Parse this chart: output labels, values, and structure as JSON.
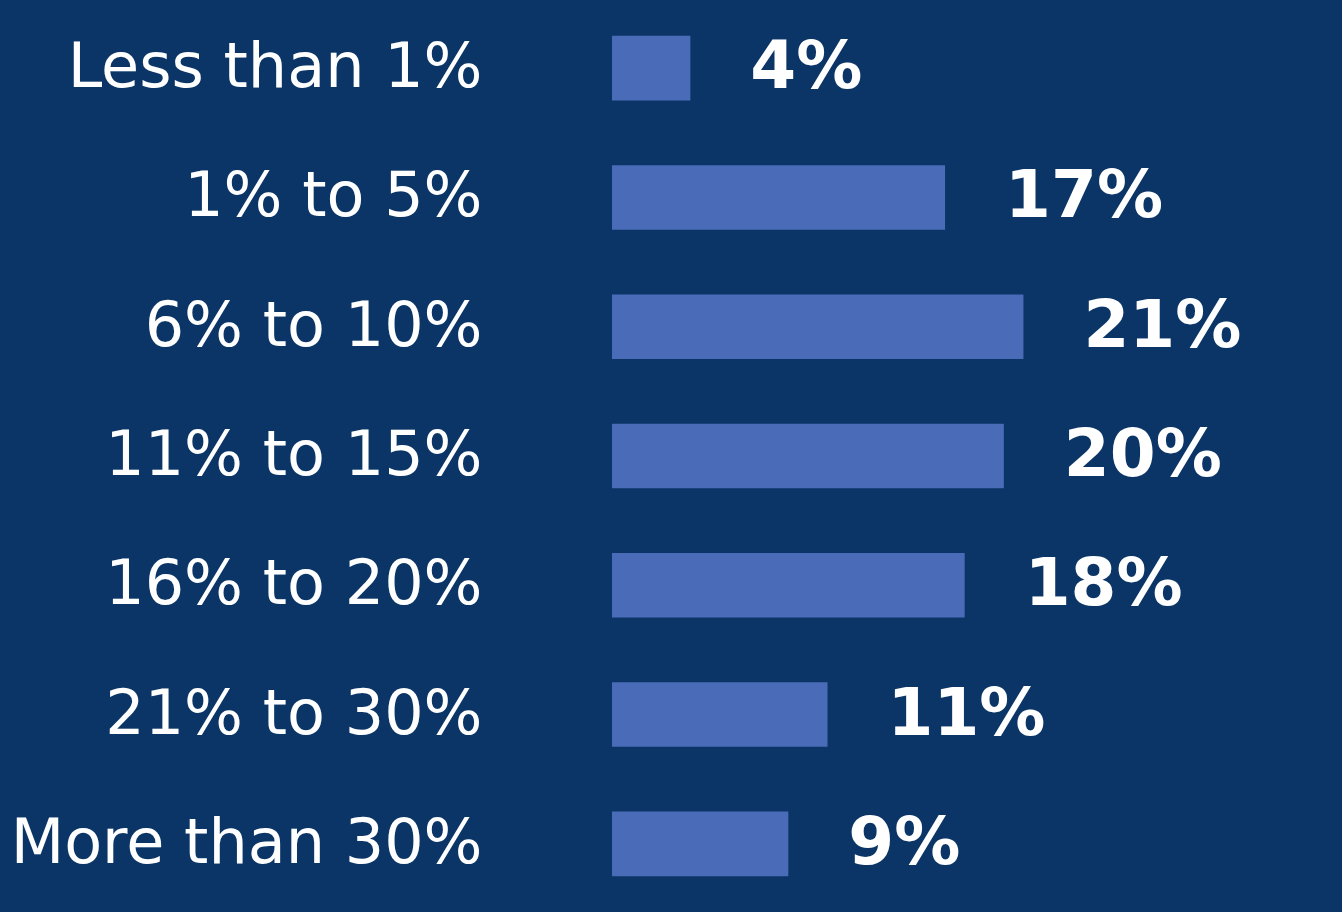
{
  "chart_data": {
    "type": "bar",
    "orientation": "horizontal",
    "categories": [
      "Less than 1%",
      "1% to 5%",
      "6% to 10%",
      "11% to 15%",
      "16% to 20%",
      "21% to 30%",
      "More than 30%"
    ],
    "values": [
      4,
      17,
      21,
      20,
      18,
      11,
      9
    ],
    "value_labels": [
      "4%",
      "17%",
      "21%",
      "20%",
      "18%",
      "11%",
      "9%"
    ],
    "color": "#4a6cb8",
    "tick_labels": "y",
    "grid": false
  }
}
